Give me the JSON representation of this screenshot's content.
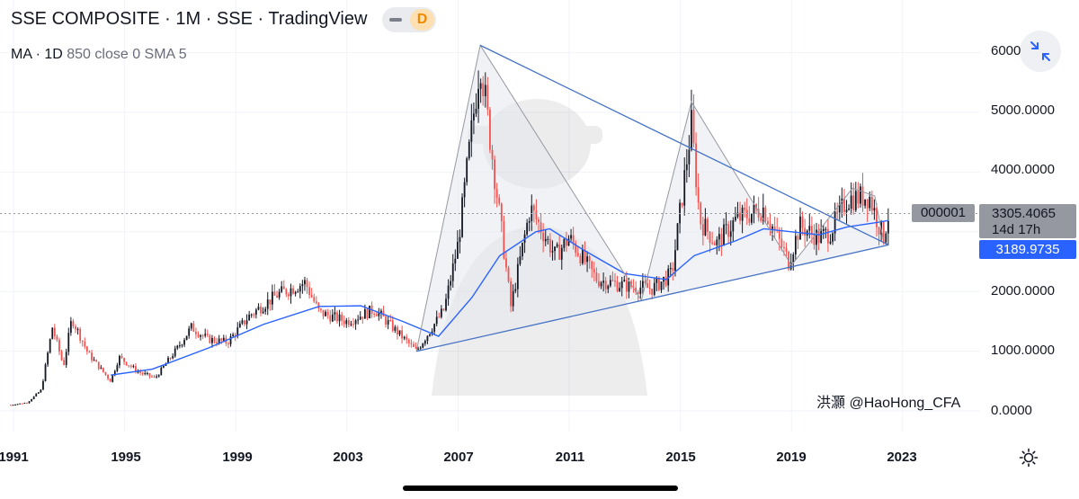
{
  "header": {
    "title": "SSE COMPOSITE · 1M · SSE · TradingView",
    "interval_badge": "D",
    "indicator_name": "MA · 1D",
    "indicator_params": "850 close 0 SMA 5"
  },
  "price_scale": {
    "labels": [
      "6000",
      "5000.0000",
      "4000.0000",
      "2000.0000",
      "1000.0000",
      "0.0000"
    ],
    "symbol_tag": "000001",
    "last_price": "3305.4065",
    "countdown": "14d 17h",
    "ma_value": "3189.9735"
  },
  "watermark": "洪灝 @HaoHong_CFA",
  "colors": {
    "up": "#131722",
    "down": "#f05350",
    "ma": "#2962ff",
    "triangle": "#4472c4",
    "zigzag": "#9598a1"
  },
  "icons": {
    "collapse": "collapse-arrows-icon",
    "settings": "sun-settings-icon"
  },
  "chart_data": {
    "type": "candlestick",
    "title": "SSE COMPOSITE · 1M · SSE · TradingView",
    "x_tick_labels": [
      "1991",
      "1995",
      "1999",
      "2003",
      "2007",
      "2011",
      "2015",
      "2019",
      "2023"
    ],
    "y_tick_labels": [
      "6000",
      "5000.0000",
      "4000.0000",
      "2000.0000",
      "1000.0000",
      "0.0000"
    ],
    "ylim": [
      0,
      6200
    ],
    "grid": true,
    "price_path": [
      [
        1990.9,
        100
      ],
      [
        1991.5,
        140
      ],
      [
        1992.0,
        350
      ],
      [
        1992.4,
        1400
      ],
      [
        1992.8,
        750
      ],
      [
        1993.1,
        1550
      ],
      [
        1993.7,
        950
      ],
      [
        1994.5,
        500
      ],
      [
        1994.8,
        900
      ],
      [
        1995.5,
        650
      ],
      [
        1996.1,
        550
      ],
      [
        1996.9,
        1050
      ],
      [
        1997.4,
        1400
      ],
      [
        1998.0,
        1200
      ],
      [
        1998.7,
        1150
      ],
      [
        1999.5,
        1600
      ],
      [
        2000.5,
        1950
      ],
      [
        2001.5,
        2150
      ],
      [
        2002.0,
        1650
      ],
      [
        2003.0,
        1500
      ],
      [
        2004.0,
        1700
      ],
      [
        2005.5,
        1000
      ],
      [
        2006.5,
        1700
      ],
      [
        2007.0,
        2800
      ],
      [
        2007.8,
        5900
      ],
      [
        2008.9,
        1750
      ],
      [
        2009.6,
        3400
      ],
      [
        2010.5,
        2600
      ],
      [
        2011.0,
        2900
      ],
      [
        2012.0,
        2200
      ],
      [
        2013.0,
        2100
      ],
      [
        2014.0,
        2050
      ],
      [
        2014.7,
        2300
      ],
      [
        2015.4,
        4800
      ],
      [
        2015.7,
        3200
      ],
      [
        2016.3,
        2800
      ],
      [
        2017.0,
        3200
      ],
      [
        2018.0,
        3400
      ],
      [
        2018.9,
        2500
      ],
      [
        2019.3,
        3100
      ],
      [
        2020.0,
        2900
      ],
      [
        2020.4,
        3000
      ],
      [
        2021.0,
        3550
      ],
      [
        2021.8,
        3600
      ],
      [
        2022.3,
        2900
      ],
      [
        2022.5,
        3305
      ]
    ],
    "series": [
      {
        "name": "MA",
        "values": [
          [
            1994.5,
            600
          ],
          [
            1996.0,
            700
          ],
          [
            1998.0,
            1050
          ],
          [
            2000.0,
            1450
          ],
          [
            2002.0,
            1750
          ],
          [
            2003.5,
            1760
          ],
          [
            2005.0,
            1500
          ],
          [
            2006.3,
            1250
          ],
          [
            2007.5,
            1900
          ],
          [
            2008.5,
            2600
          ],
          [
            2009.8,
            3000
          ],
          [
            2010.3,
            3050
          ],
          [
            2011.5,
            2700
          ],
          [
            2013.0,
            2300
          ],
          [
            2014.5,
            2200
          ],
          [
            2015.5,
            2600
          ],
          [
            2017.0,
            2850
          ],
          [
            2018.0,
            3050
          ],
          [
            2019.0,
            3000
          ],
          [
            2020.0,
            2950
          ],
          [
            2021.0,
            3080
          ],
          [
            2022.0,
            3150
          ],
          [
            2022.5,
            3190
          ]
        ]
      }
    ],
    "trendlines": [
      {
        "from": [
          2007.8,
          6124
        ],
        "to": [
          2022.5,
          2780
        ]
      },
      {
        "from": [
          2005.5,
          998
        ],
        "to": [
          2022.5,
          2780
        ]
      }
    ],
    "zigzag": [
      [
        2005.5,
        998
      ],
      [
        2007.8,
        6124
      ],
      [
        2013.6,
        1850
      ],
      [
        2015.4,
        5178
      ],
      [
        2019.0,
        2440
      ],
      [
        2021.2,
        3731
      ],
      [
        2022.0,
        3600
      ],
      [
        2022.3,
        2880
      ]
    ],
    "last_price": 3305.4065,
    "ma_last": 3189.9735
  }
}
